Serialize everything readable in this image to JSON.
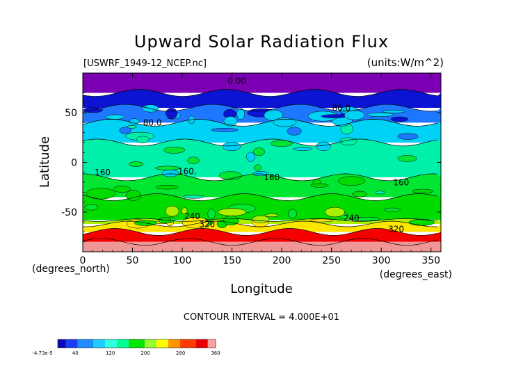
{
  "chart_data": {
    "type": "heatmap",
    "title": "Upward Solar Radiation Flux",
    "file_label": "[USWRF_1949-12_NCEP.nc]",
    "units_label": "(units:W/m^2)",
    "xlabel": "Longitude",
    "ylabel": "Latitude",
    "x_units_label": "(degrees_east)",
    "y_units_label": "(degrees_north)",
    "xlim": [
      0,
      360
    ],
    "ylim": [
      -90,
      90
    ],
    "x_ticks": [
      "0",
      "50",
      "100",
      "150",
      "200",
      "250",
      "300",
      "350"
    ],
    "y_ticks": [
      "50",
      "0",
      "-50"
    ],
    "contour_interval_text": "CONTOUR INTERVAL = 4.000E+01",
    "contour_labels": [
      "0.00",
      "80.0",
      "80.0",
      "160",
      "160.",
      "160",
      "160",
      "240",
      "240",
      "320",
      "320"
    ],
    "colorbar": {
      "tick_labels": [
        "-4.73e-5",
        "40",
        "120",
        "200",
        "280",
        "360"
      ],
      "range": [
        0,
        360
      ],
      "colors": [
        "#0a0ab4",
        "#1e3cf0",
        "#1e8cff",
        "#1ecdff",
        "#32ffdc",
        "#00ff96",
        "#00e600",
        "#96ff32",
        "#ffff00",
        "#ff9600",
        "#ff3c00",
        "#e60000",
        "#ffa0a0"
      ]
    },
    "bands": [
      {
        "lat_range": [
          70,
          90
        ],
        "value": 0,
        "color": "#7b00b4"
      },
      {
        "lat_range": [
          55,
          70
        ],
        "value": 20,
        "color": "#0a14d2"
      },
      {
        "lat_range": [
          40,
          55
        ],
        "value": 60,
        "color": "#1e78ff"
      },
      {
        "lat_range": [
          20,
          40
        ],
        "value": 90,
        "color": "#00d2f5"
      },
      {
        "lat_range": [
          -15,
          20
        ],
        "value": 120,
        "color": "#00f0aa"
      },
      {
        "lat_range": [
          -35,
          -15
        ],
        "value": 160,
        "color": "#00e632"
      },
      {
        "lat_range": [
          -58,
          -35
        ],
        "value": 200,
        "color": "#00dc00"
      },
      {
        "lat_range": [
          -62,
          -58
        ],
        "value": 240,
        "color": "#aaf000"
      },
      {
        "lat_range": [
          -70,
          -62
        ],
        "value": 270,
        "color": "#ffe600"
      },
      {
        "lat_range": [
          -80,
          -70
        ],
        "value": 320,
        "color": "#f50000"
      },
      {
        "lat_range": [
          -90,
          -80
        ],
        "value": 360,
        "color": "#f09696"
      }
    ]
  }
}
